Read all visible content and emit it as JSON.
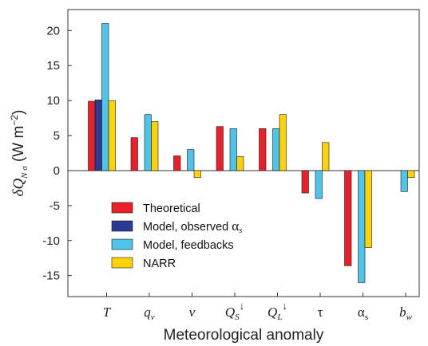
{
  "chart_data": {
    "type": "bar",
    "xlabel": "Meteorological anomaly",
    "ylabel": {
      "main": "δQ",
      "sub": "N σ",
      "units": "(W m",
      "exp": "−2",
      "close": ")"
    },
    "ylim": [
      -18,
      23
    ],
    "yticks": [
      -15,
      -10,
      -5,
      0,
      5,
      10,
      15,
      20
    ],
    "grid": false,
    "legend_position": "bottom-left",
    "categories": [
      {
        "main": "T",
        "sub": "",
        "sup": "",
        "italic": true
      },
      {
        "main": "q",
        "sub": "v",
        "sup": "",
        "italic": true
      },
      {
        "main": "v",
        "sub": "",
        "sup": "",
        "italic": true
      },
      {
        "main": "Q",
        "sub": "S",
        "sup": "↓",
        "italic": true
      },
      {
        "main": "Q",
        "sub": "L",
        "sup": "↓",
        "italic": true
      },
      {
        "main": "τ",
        "sub": "",
        "sup": "",
        "italic": false
      },
      {
        "main": "α",
        "sub": "s",
        "sup": "",
        "italic": false
      },
      {
        "main": "b",
        "sub": "w",
        "sup": "",
        "italic": true
      }
    ],
    "series": [
      {
        "name": "Theoretical",
        "color": "#e8202a",
        "values": [
          9.9,
          4.7,
          2.1,
          6.3,
          6.0,
          -3.2,
          -13.6,
          null
        ]
      },
      {
        "name": "Model, observed αs",
        "legend_main": "Model, observed ",
        "legend_symbol": "α",
        "legend_sub": "s",
        "color": "#2b3b92",
        "values": [
          10.1,
          null,
          null,
          null,
          null,
          null,
          null,
          null
        ]
      },
      {
        "name": "Model, feedbacks",
        "color": "#4fc4e8",
        "values": [
          21.0,
          8.0,
          3.0,
          6.0,
          6.0,
          -4.0,
          -16.0,
          -3.0
        ]
      },
      {
        "name": "NARR",
        "color": "#fdd20a",
        "values": [
          10.0,
          7.0,
          -1.0,
          2.0,
          8.0,
          4.0,
          -11.0,
          -1.0
        ]
      }
    ]
  }
}
